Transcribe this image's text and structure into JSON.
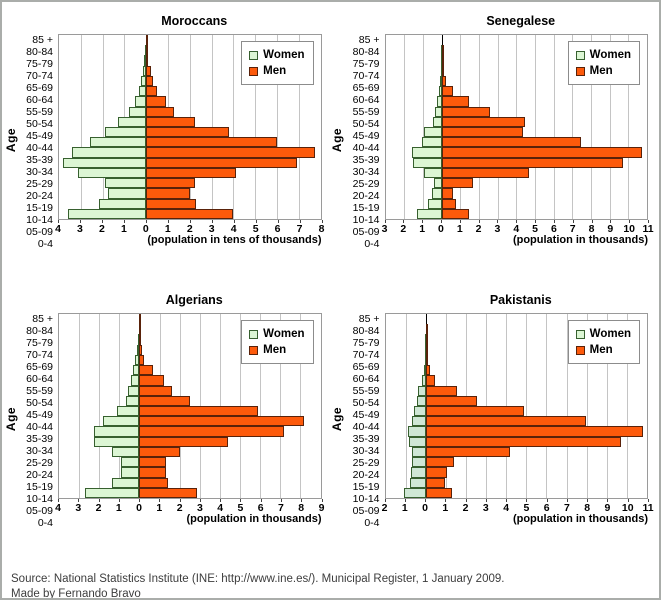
{
  "legend": {
    "women_label": "Women",
    "men_label": "Men"
  },
  "age_axis_label": "Age",
  "footer": {
    "line1": "Source: National Statistics Institute (INE: http://www.ine.es/). Municipal Register, 1 January 2009.",
    "line2": "Made by Fernando Bravo"
  },
  "colors": {
    "women_fill": "#dcf6d4",
    "women_border": "#37602f",
    "men_fill": "#fd5a0b",
    "men_border": "#59220a",
    "gridline": "#c4c4c4",
    "zero_line": "#000000",
    "plot_border": "#9a9a9a"
  },
  "chart_data": [
    {
      "type": "bar",
      "subtype": "population-pyramid",
      "title": "Moroccans",
      "xlabel": "(population in tens of thousands)",
      "ylabel": "Age",
      "left_axis_max": 4,
      "right_axis_max": 8,
      "x_ticks": [
        4,
        3,
        2,
        1,
        0,
        1,
        2,
        3,
        4,
        5,
        6,
        7,
        8
      ],
      "categories": [
        "85 +",
        "80-84",
        "75-79",
        "70-74",
        "65-69",
        "60-64",
        "55-59",
        "50-54",
        "45-49",
        "40-44",
        "35-39",
        "30-34",
        "25-29",
        "20-24",
        "15-19",
        "10-14",
        "05-09",
        "0-4"
      ],
      "series": [
        {
          "name": "Women",
          "side": "left",
          "values": [
            0.02,
            0.05,
            0.1,
            0.15,
            0.25,
            0.35,
            0.5,
            0.8,
            1.3,
            1.9,
            2.6,
            3.4,
            3.8,
            3.15,
            1.9,
            1.75,
            2.15,
            3.6
          ]
        },
        {
          "name": "Men",
          "side": "right",
          "values": [
            0.02,
            0.05,
            0.1,
            0.2,
            0.3,
            0.5,
            0.9,
            1.3,
            2.25,
            3.8,
            6.0,
            7.75,
            6.9,
            4.1,
            2.25,
            2.0,
            2.3,
            4.0
          ]
        }
      ]
    },
    {
      "type": "bar",
      "subtype": "population-pyramid",
      "title": "Senegalese",
      "xlabel": "(population in thousands)",
      "ylabel": "Age",
      "left_axis_max": 3,
      "right_axis_max": 11,
      "x_ticks": [
        3,
        2,
        1,
        0,
        1,
        2,
        3,
        4,
        5,
        6,
        7,
        8,
        9,
        10,
        11
      ],
      "categories": [
        "85 +",
        "80-84",
        "75-79",
        "70-74",
        "65-69",
        "60-64",
        "55-59",
        "50-54",
        "45-49",
        "40-44",
        "35-39",
        "30-34",
        "25-29",
        "20-24",
        "15-19",
        "10-14",
        "05-09",
        "0-4"
      ],
      "series": [
        {
          "name": "Women",
          "side": "left",
          "values": [
            0,
            0.02,
            0.03,
            0.05,
            0.08,
            0.13,
            0.24,
            0.36,
            0.45,
            0.95,
            1.05,
            1.6,
            1.55,
            0.95,
            0.42,
            0.5,
            0.72,
            1.33
          ]
        },
        {
          "name": "Men",
          "side": "right",
          "values": [
            0,
            0.02,
            0.04,
            0.07,
            0.24,
            0.64,
            1.45,
            2.6,
            4.45,
            4.35,
            7.45,
            10.75,
            9.7,
            4.7,
            1.7,
            0.64,
            0.8,
            1.45
          ]
        }
      ]
    },
    {
      "type": "bar",
      "subtype": "population-pyramid",
      "title": "Algerians",
      "xlabel": "(population in thousands)",
      "ylabel": "Age",
      "left_axis_max": 4,
      "right_axis_max": 9,
      "x_ticks": [
        4,
        3,
        2,
        1,
        0,
        1,
        2,
        3,
        4,
        5,
        6,
        7,
        8,
        9
      ],
      "categories": [
        "85 +",
        "80-84",
        "75-79",
        "70-74",
        "65-69",
        "60-64",
        "55-59",
        "50-54",
        "45-49",
        "40-44",
        "35-39",
        "30-34",
        "25-29",
        "20-24",
        "15-19",
        "10-14",
        "05-09",
        "0-4"
      ],
      "series": [
        {
          "name": "Women",
          "side": "left",
          "values": [
            0.01,
            0.04,
            0.07,
            0.1,
            0.2,
            0.3,
            0.42,
            0.55,
            0.65,
            1.1,
            1.8,
            2.25,
            2.25,
            1.35,
            0.9,
            0.9,
            1.35,
            2.7
          ]
        },
        {
          "name": "Men",
          "side": "right",
          "values": [
            0.02,
            0.07,
            0.08,
            0.12,
            0.25,
            0.65,
            1.2,
            1.6,
            2.5,
            5.9,
            8.2,
            7.2,
            4.4,
            2.0,
            1.3,
            1.3,
            1.4,
            2.85
          ]
        }
      ]
    },
    {
      "type": "bar",
      "subtype": "population-pyramid",
      "title": "Pakistanis",
      "xlabel": "(population in thousands)",
      "ylabel": "Age",
      "left_axis_max": 2,
      "right_axis_max": 11,
      "women_fill": "#cfe7d5",
      "x_ticks": [
        2,
        1,
        0,
        1,
        2,
        3,
        4,
        5,
        6,
        7,
        8,
        9,
        10,
        11
      ],
      "categories": [
        "85 +",
        "80-84",
        "75-79",
        "70-74",
        "65-69",
        "60-64",
        "55-59",
        "50-54",
        "45-49",
        "40-44",
        "35-39",
        "30-34",
        "25-29",
        "20-24",
        "15-19",
        "10-14",
        "05-09",
        "0-4"
      ],
      "series": [
        {
          "name": "Women",
          "side": "left",
          "values": [
            0,
            0.01,
            0.02,
            0.03,
            0.05,
            0.1,
            0.17,
            0.4,
            0.45,
            0.57,
            0.7,
            0.9,
            0.83,
            0.66,
            0.7,
            0.74,
            0.78,
            1.1
          ]
        },
        {
          "name": "Men",
          "side": "right",
          "values": [
            0,
            0.01,
            0.02,
            0.04,
            0.08,
            0.2,
            0.45,
            1.55,
            2.55,
            4.9,
            7.95,
            10.8,
            9.7,
            4.2,
            1.4,
            1.07,
            0.95,
            1.3
          ]
        }
      ]
    }
  ]
}
